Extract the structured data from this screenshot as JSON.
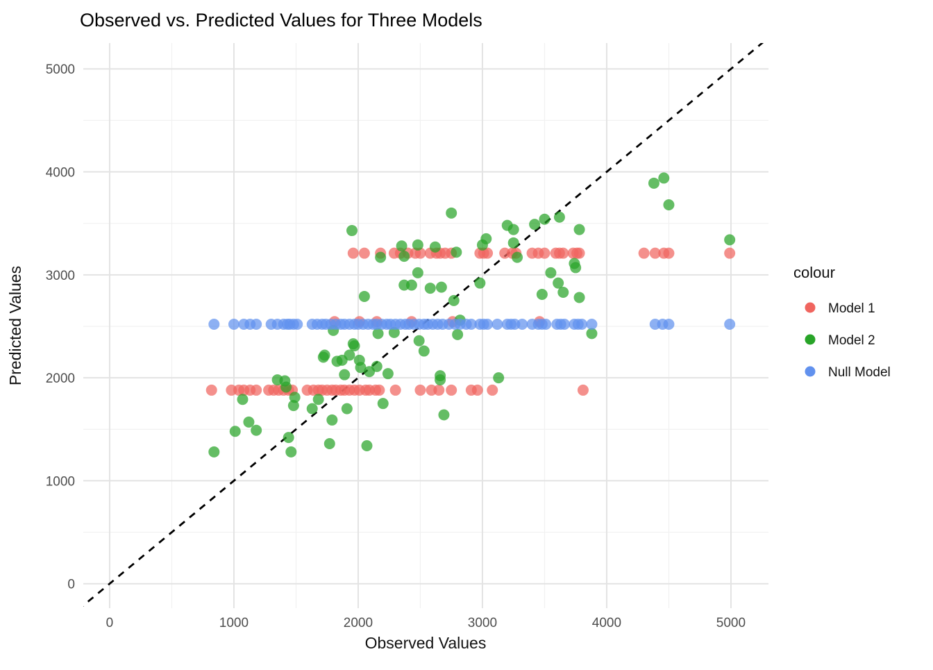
{
  "chart_data": {
    "type": "scatter",
    "title": "Observed vs. Predicted Values for Three Models",
    "xlabel": "Observed Values",
    "ylabel": "Predicted Values",
    "xlim": [
      -212,
      5302
    ],
    "ylim": [
      -238,
      5251
    ],
    "x_major_ticks": [
      0,
      1000,
      2000,
      3000,
      4000,
      5000
    ],
    "y_major_ticks": [
      0,
      1000,
      2000,
      3000,
      4000,
      5000
    ],
    "x_minor_ticks": [
      500,
      1500,
      2500,
      3500,
      4500
    ],
    "y_minor_ticks": [
      500,
      1500,
      2500,
      3500,
      4500
    ],
    "grid": true,
    "grid_major_color": "#e3e3e3",
    "grid_minor_color": "#f1f1f1",
    "identity_line": {
      "type": "abline",
      "slope": 1,
      "intercept": 0,
      "style": "dashed",
      "color": "#000000"
    },
    "point_alpha": 0.72,
    "point_radius": 8,
    "legend": {
      "title": "colour",
      "position": "right"
    },
    "series": [
      {
        "name": "Model 1",
        "color": "#f0655f",
        "points": [
          [
            820,
            1880
          ],
          [
            980,
            1880
          ],
          [
            1040,
            1880
          ],
          [
            1080,
            1880
          ],
          [
            1130,
            1880
          ],
          [
            1180,
            1880
          ],
          [
            1280,
            1880
          ],
          [
            1320,
            1880
          ],
          [
            1360,
            1880
          ],
          [
            1400,
            1880
          ],
          [
            1440,
            1880
          ],
          [
            1470,
            1880
          ],
          [
            1590,
            1880
          ],
          [
            1640,
            1880
          ],
          [
            1680,
            1880
          ],
          [
            1710,
            1880
          ],
          [
            1750,
            1880
          ],
          [
            1790,
            1880
          ],
          [
            1820,
            1880
          ],
          [
            1860,
            1880
          ],
          [
            1890,
            1880
          ],
          [
            1930,
            1880
          ],
          [
            1970,
            1880
          ],
          [
            2010,
            1880
          ],
          [
            2060,
            1880
          ],
          [
            2090,
            1880
          ],
          [
            2140,
            1880
          ],
          [
            2170,
            1880
          ],
          [
            2300,
            1880
          ],
          [
            2500,
            1880
          ],
          [
            2590,
            1880
          ],
          [
            2650,
            1880
          ],
          [
            2750,
            1880
          ],
          [
            2910,
            1880
          ],
          [
            2960,
            1880
          ],
          [
            3080,
            1880
          ],
          [
            3810,
            1880
          ],
          [
            1810,
            2545
          ],
          [
            2010,
            2545
          ],
          [
            2150,
            2545
          ],
          [
            2430,
            2545
          ],
          [
            2760,
            2545
          ],
          [
            3460,
            2545
          ],
          [
            1960,
            3210
          ],
          [
            2050,
            3210
          ],
          [
            2180,
            3210
          ],
          [
            2290,
            3210
          ],
          [
            2340,
            3210
          ],
          [
            2400,
            3210
          ],
          [
            2460,
            3210
          ],
          [
            2500,
            3210
          ],
          [
            2580,
            3210
          ],
          [
            2630,
            3210
          ],
          [
            2660,
            3210
          ],
          [
            2700,
            3210
          ],
          [
            2750,
            3210
          ],
          [
            2980,
            3210
          ],
          [
            3010,
            3210
          ],
          [
            3040,
            3210
          ],
          [
            3180,
            3210
          ],
          [
            3240,
            3210
          ],
          [
            3270,
            3210
          ],
          [
            3400,
            3210
          ],
          [
            3450,
            3210
          ],
          [
            3500,
            3210
          ],
          [
            3590,
            3210
          ],
          [
            3620,
            3210
          ],
          [
            3650,
            3210
          ],
          [
            3730,
            3210
          ],
          [
            3760,
            3210
          ],
          [
            3780,
            3210
          ],
          [
            4300,
            3210
          ],
          [
            4390,
            3210
          ],
          [
            4460,
            3210
          ],
          [
            4500,
            3210
          ],
          [
            4990,
            3210
          ]
        ]
      },
      {
        "name": "Model 2",
        "color": "#28a428",
        "points": [
          [
            840,
            1280
          ],
          [
            1010,
            1480
          ],
          [
            1070,
            1790
          ],
          [
            1120,
            1570
          ],
          [
            1180,
            1490
          ],
          [
            1350,
            1980
          ],
          [
            1410,
            1970
          ],
          [
            1420,
            1910
          ],
          [
            1440,
            1420
          ],
          [
            1460,
            1280
          ],
          [
            1480,
            1730
          ],
          [
            1490,
            1810
          ],
          [
            1630,
            1700
          ],
          [
            1680,
            1790
          ],
          [
            1720,
            2200
          ],
          [
            1730,
            2220
          ],
          [
            1770,
            1360
          ],
          [
            1790,
            1590
          ],
          [
            1800,
            2460
          ],
          [
            1830,
            2160
          ],
          [
            1870,
            2170
          ],
          [
            1890,
            2030
          ],
          [
            1910,
            1700
          ],
          [
            1930,
            2220
          ],
          [
            1950,
            3430
          ],
          [
            1960,
            2330
          ],
          [
            1970,
            2310
          ],
          [
            2010,
            2170
          ],
          [
            2020,
            2100
          ],
          [
            2050,
            2790
          ],
          [
            2070,
            1340
          ],
          [
            2090,
            2060
          ],
          [
            2150,
            2110
          ],
          [
            2160,
            2430
          ],
          [
            2180,
            3170
          ],
          [
            2200,
            1750
          ],
          [
            2240,
            2040
          ],
          [
            2290,
            2440
          ],
          [
            2350,
            3280
          ],
          [
            2370,
            3180
          ],
          [
            2370,
            2900
          ],
          [
            2430,
            2900
          ],
          [
            2480,
            3290
          ],
          [
            2480,
            3020
          ],
          [
            2490,
            2360
          ],
          [
            2530,
            2260
          ],
          [
            2580,
            2870
          ],
          [
            2620,
            3270
          ],
          [
            2660,
            2020
          ],
          [
            2660,
            1980
          ],
          [
            2670,
            2880
          ],
          [
            2690,
            1640
          ],
          [
            2750,
            3600
          ],
          [
            2770,
            2750
          ],
          [
            2790,
            3220
          ],
          [
            2800,
            2420
          ],
          [
            2820,
            2560
          ],
          [
            2980,
            2920
          ],
          [
            3000,
            3290
          ],
          [
            3030,
            3350
          ],
          [
            3130,
            2000
          ],
          [
            3200,
            3480
          ],
          [
            3250,
            3440
          ],
          [
            3250,
            3310
          ],
          [
            3280,
            3170
          ],
          [
            3420,
            3490
          ],
          [
            3480,
            2810
          ],
          [
            3500,
            3540
          ],
          [
            3550,
            3020
          ],
          [
            3610,
            2920
          ],
          [
            3620,
            3560
          ],
          [
            3650,
            2830
          ],
          [
            3740,
            3110
          ],
          [
            3750,
            3070
          ],
          [
            3780,
            3440
          ],
          [
            3780,
            2780
          ],
          [
            3880,
            2430
          ],
          [
            4380,
            3890
          ],
          [
            4460,
            3940
          ],
          [
            4500,
            3680
          ],
          [
            4990,
            3340
          ]
        ]
      },
      {
        "name": "Null Model",
        "color": "#6191ee",
        "points": [
          [
            840,
            2520
          ],
          [
            1000,
            2520
          ],
          [
            1080,
            2520
          ],
          [
            1130,
            2520
          ],
          [
            1180,
            2520
          ],
          [
            1300,
            2520
          ],
          [
            1350,
            2520
          ],
          [
            1400,
            2520
          ],
          [
            1430,
            2520
          ],
          [
            1450,
            2520
          ],
          [
            1480,
            2520
          ],
          [
            1510,
            2520
          ],
          [
            1630,
            2520
          ],
          [
            1670,
            2520
          ],
          [
            1710,
            2520
          ],
          [
            1740,
            2520
          ],
          [
            1780,
            2520
          ],
          [
            1820,
            2520
          ],
          [
            1860,
            2520
          ],
          [
            1890,
            2520
          ],
          [
            1930,
            2520
          ],
          [
            1970,
            2520
          ],
          [
            2000,
            2520
          ],
          [
            2040,
            2520
          ],
          [
            2080,
            2520
          ],
          [
            2120,
            2520
          ],
          [
            2150,
            2520
          ],
          [
            2190,
            2520
          ],
          [
            2230,
            2520
          ],
          [
            2260,
            2520
          ],
          [
            2300,
            2520
          ],
          [
            2340,
            2520
          ],
          [
            2380,
            2520
          ],
          [
            2410,
            2520
          ],
          [
            2450,
            2520
          ],
          [
            2490,
            2520
          ],
          [
            2530,
            2520
          ],
          [
            2560,
            2520
          ],
          [
            2600,
            2520
          ],
          [
            2640,
            2520
          ],
          [
            2680,
            2520
          ],
          [
            2730,
            2520
          ],
          [
            2780,
            2520
          ],
          [
            2820,
            2520
          ],
          [
            2870,
            2520
          ],
          [
            2910,
            2520
          ],
          [
            2980,
            2520
          ],
          [
            3010,
            2520
          ],
          [
            3040,
            2520
          ],
          [
            3120,
            2520
          ],
          [
            3200,
            2520
          ],
          [
            3230,
            2520
          ],
          [
            3260,
            2520
          ],
          [
            3320,
            2520
          ],
          [
            3400,
            2520
          ],
          [
            3450,
            2520
          ],
          [
            3480,
            2520
          ],
          [
            3510,
            2520
          ],
          [
            3600,
            2520
          ],
          [
            3630,
            2520
          ],
          [
            3660,
            2520
          ],
          [
            3740,
            2520
          ],
          [
            3770,
            2520
          ],
          [
            3800,
            2520
          ],
          [
            3880,
            2520
          ],
          [
            4390,
            2520
          ],
          [
            4450,
            2520
          ],
          [
            4500,
            2520
          ],
          [
            4990,
            2520
          ]
        ]
      }
    ]
  }
}
